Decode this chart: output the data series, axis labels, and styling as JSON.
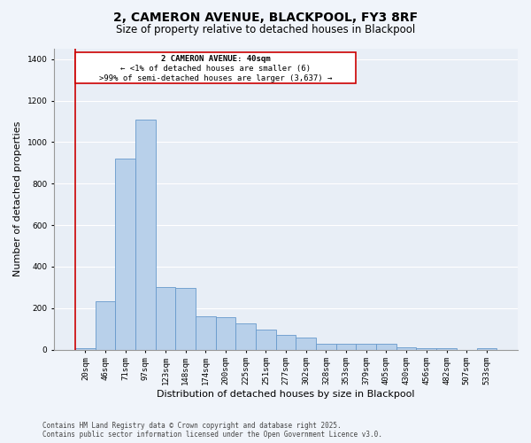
{
  "title1": "2, CAMERON AVENUE, BLACKPOOL, FY3 8RF",
  "title2": "Size of property relative to detached houses in Blackpool",
  "xlabel": "Distribution of detached houses by size in Blackpool",
  "ylabel": "Number of detached properties",
  "bar_color": "#b8d0ea",
  "bar_edge_color": "#6699cc",
  "background_color": "#e8eef6",
  "grid_color": "#ffffff",
  "annotation_line_color": "#cc0000",
  "annotation_box_color": "#cc0000",
  "categories": [
    "20sqm",
    "46sqm",
    "71sqm",
    "97sqm",
    "123sqm",
    "148sqm",
    "174sqm",
    "200sqm",
    "225sqm",
    "251sqm",
    "277sqm",
    "302sqm",
    "328sqm",
    "353sqm",
    "379sqm",
    "405sqm",
    "430sqm",
    "456sqm",
    "482sqm",
    "507sqm",
    "533sqm"
  ],
  "values": [
    5,
    232,
    920,
    1110,
    300,
    298,
    162,
    155,
    128,
    95,
    72,
    56,
    30,
    28,
    28,
    27,
    13,
    5,
    5,
    0,
    5
  ],
  "annotation_text_line1": "2 CAMERON AVENUE: 40sqm",
  "annotation_text_line2": "← <1% of detached houses are smaller (6)",
  "annotation_text_line3": ">99% of semi-detached houses are larger (3,637) →",
  "ylim": [
    0,
    1450
  ],
  "yticks": [
    0,
    200,
    400,
    600,
    800,
    1000,
    1200,
    1400
  ],
  "footer_line1": "Contains HM Land Registry data © Crown copyright and database right 2025.",
  "footer_line2": "Contains public sector information licensed under the Open Government Licence v3.0.",
  "fig_bg": "#f0f4fa",
  "title_fontsize": 10,
  "subtitle_fontsize": 8.5,
  "tick_fontsize": 6.5,
  "label_fontsize": 8,
  "footer_fontsize": 5.5
}
